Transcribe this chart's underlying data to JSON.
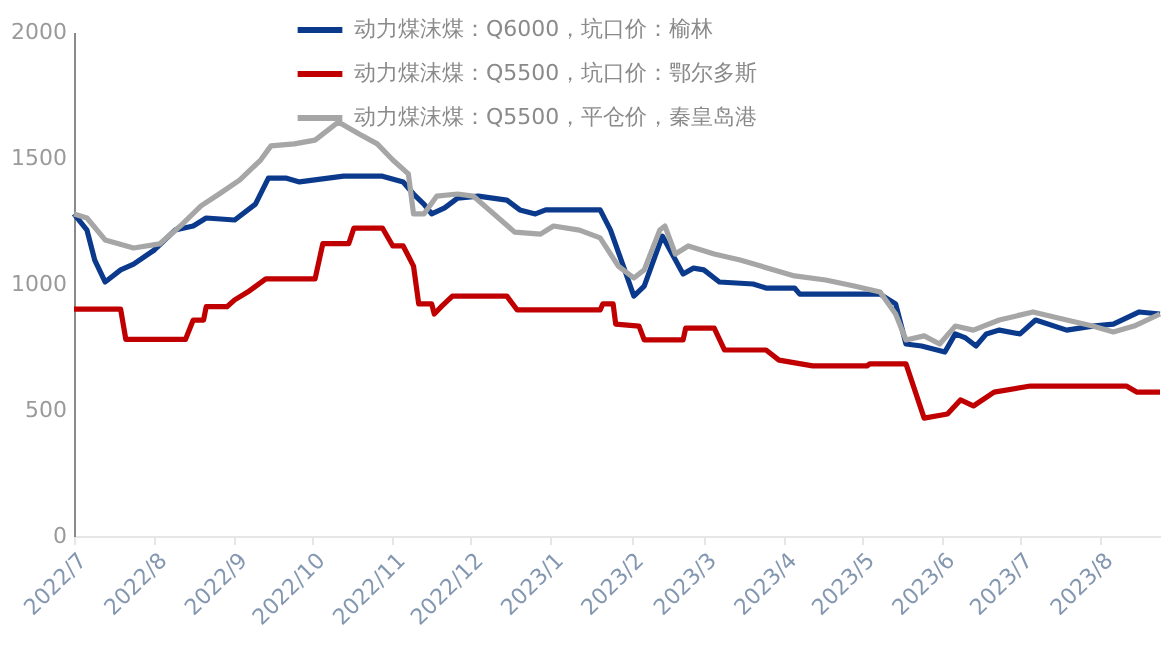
{
  "chart_data": {
    "type": "line",
    "xlim": [
      "2022-07-01",
      "2023-08-24"
    ],
    "xticks": [
      {
        "value": "2022-07-01",
        "label": "2022/7"
      },
      {
        "value": "2022-08-01",
        "label": "2022/8"
      },
      {
        "value": "2022-09-01",
        "label": "2022/9"
      },
      {
        "value": "2022-10-01",
        "label": "2022/10"
      },
      {
        "value": "2022-11-01",
        "label": "2022/11"
      },
      {
        "value": "2022-12-01",
        "label": "2022/12"
      },
      {
        "value": "2023-01-01",
        "label": "2023/1"
      },
      {
        "value": "2023-02-01",
        "label": "2023/2"
      },
      {
        "value": "2023-03-01",
        "label": "2023/3"
      },
      {
        "value": "2023-04-01",
        "label": "2023/4"
      },
      {
        "value": "2023-05-01",
        "label": "2023/5"
      },
      {
        "value": "2023-06-01",
        "label": "2023/6"
      },
      {
        "value": "2023-07-01",
        "label": "2023/7"
      },
      {
        "value": "2023-08-01",
        "label": "2023/8"
      }
    ],
    "ylim": [
      0,
      2000
    ],
    "yticks": [
      0,
      500,
      1000,
      1500,
      2000
    ],
    "legend": "top",
    "series": [
      {
        "name": "动力煤沫煤：Q6000，坑口价：榆林",
        "color": "#0b3a8c",
        "x": [
          "2022-07-01",
          "2022-07-06",
          "2022-07-09",
          "2022-07-13",
          "2022-07-15",
          "2022-07-19",
          "2022-07-24",
          "2022-08-01",
          "2022-08-09",
          "2022-08-16",
          "2022-08-21",
          "2022-09-01",
          "2022-09-09",
          "2022-09-14",
          "2022-09-21",
          "2022-09-26",
          "2022-10-13",
          "2022-10-28",
          "2022-11-05",
          "2022-11-09",
          "2022-11-13",
          "2022-11-16",
          "2022-11-21",
          "2022-11-26",
          "2022-12-04",
          "2022-12-15",
          "2022-12-20",
          "2022-12-26",
          "2022-12-30",
          "2023-01-20",
          "2023-01-24",
          "2023-01-30",
          "2023-02-02",
          "2023-02-06",
          "2023-02-13",
          "2023-02-21",
          "2023-02-25",
          "2023-03-01",
          "2023-03-07",
          "2023-03-20",
          "2023-03-25",
          "2023-04-05",
          "2023-04-07",
          "2023-05-08",
          "2023-05-14",
          "2023-05-18",
          "2023-05-24",
          "2023-06-02",
          "2023-06-06",
          "2023-06-10",
          "2023-06-14",
          "2023-06-18",
          "2023-06-23",
          "2023-07-01",
          "2023-07-07",
          "2023-07-19",
          "2023-07-29",
          "2023-08-06",
          "2023-08-16",
          "2023-08-24"
        ],
        "values": [
          1278,
          1214,
          1095,
          1008,
          1024,
          1056,
          1079,
          1135,
          1214,
          1230,
          1262,
          1254,
          1317,
          1420,
          1420,
          1405,
          1428,
          1428,
          1405,
          1357,
          1317,
          1278,
          1302,
          1341,
          1349,
          1333,
          1294,
          1278,
          1294,
          1294,
          1214,
          1040,
          952,
          992,
          1190,
          1040,
          1063,
          1056,
          1008,
          1000,
          984,
          984,
          960,
          960,
          921,
          762,
          754,
          730,
          802,
          786,
          754,
          802,
          817,
          802,
          857,
          817,
          833,
          841,
          889,
          881
        ]
      },
      {
        "name": "动力煤沫煤：Q5500，坑口价：鄂尔多斯",
        "color": "#c00000",
        "x": [
          "2022-07-01",
          "2022-07-19",
          "2022-07-21",
          "2022-08-13",
          "2022-08-16",
          "2022-08-20",
          "2022-08-21",
          "2022-08-29",
          "2022-09-01",
          "2022-09-06",
          "2022-09-13",
          "2022-10-02",
          "2022-10-05",
          "2022-10-15",
          "2022-10-17",
          "2022-10-28",
          "2022-11-01",
          "2022-11-05",
          "2022-11-09",
          "2022-11-11",
          "2022-11-16",
          "2022-11-17",
          "2022-11-20",
          "2022-11-24",
          "2022-12-15",
          "2022-12-19",
          "2023-01-20",
          "2023-01-21",
          "2023-01-25",
          "2023-01-26",
          "2023-02-04",
          "2023-02-06",
          "2023-02-21",
          "2023-02-22",
          "2023-03-05",
          "2023-03-09",
          "2023-03-25",
          "2023-03-30",
          "2023-04-12",
          "2023-05-03",
          "2023-05-04",
          "2023-05-18",
          "2023-05-25",
          "2023-06-03",
          "2023-06-08",
          "2023-06-13",
          "2023-06-21",
          "2023-07-05",
          "2023-08-11",
          "2023-08-15",
          "2023-08-24"
        ],
        "values": [
          900,
          900,
          780,
          780,
          857,
          857,
          910,
          910,
          937,
          968,
          1020,
          1020,
          1160,
          1160,
          1222,
          1222,
          1151,
          1151,
          1071,
          921,
          921,
          881,
          913,
          952,
          952,
          897,
          897,
          921,
          921,
          841,
          833,
          778,
          778,
          825,
          825,
          738,
          738,
          698,
          675,
          675,
          683,
          683,
          468,
          484,
          540,
          516,
          571,
          595,
          595,
          571,
          571
        ]
      },
      {
        "name": "动力煤沫煤：Q5500，平仓价，秦皇岛港",
        "color": "#a6a6a6",
        "x": [
          "2022-07-01",
          "2022-07-06",
          "2022-07-13",
          "2022-07-24",
          "2022-08-03",
          "2022-08-11",
          "2022-08-19",
          "2022-08-26",
          "2022-09-03",
          "2022-09-11",
          "2022-09-15",
          "2022-09-24",
          "2022-10-02",
          "2022-10-11",
          "2022-10-19",
          "2022-10-26",
          "2022-11-01",
          "2022-11-07",
          "2022-11-09",
          "2022-11-13",
          "2022-11-18",
          "2022-11-26",
          "2022-12-02",
          "2022-12-10",
          "2022-12-18",
          "2022-12-28",
          "2023-01-02",
          "2023-01-12",
          "2023-01-20",
          "2023-01-27",
          "2023-02-02",
          "2023-02-06",
          "2023-02-12",
          "2023-02-14",
          "2023-02-18",
          "2023-02-23",
          "2023-03-05",
          "2023-03-15",
          "2023-03-23",
          "2023-04-05",
          "2023-04-17",
          "2023-04-28",
          "2023-05-08",
          "2023-05-14",
          "2023-05-18",
          "2023-05-25",
          "2023-05-31",
          "2023-06-06",
          "2023-06-13",
          "2023-06-23",
          "2023-07-06",
          "2023-07-19",
          "2023-07-29",
          "2023-08-06",
          "2023-08-14",
          "2023-08-24"
        ],
        "values": [
          1278,
          1262,
          1175,
          1143,
          1159,
          1230,
          1310,
          1357,
          1413,
          1492,
          1548,
          1556,
          1571,
          1643,
          1595,
          1556,
          1492,
          1437,
          1278,
          1278,
          1349,
          1357,
          1349,
          1278,
          1206,
          1198,
          1230,
          1214,
          1183,
          1071,
          1024,
          1056,
          1214,
          1230,
          1119,
          1151,
          1119,
          1095,
          1071,
          1032,
          1016,
          992,
          968,
          881,
          778,
          794,
          762,
          833,
          817,
          857,
          889,
          857,
          833,
          810,
          833,
          881
        ]
      }
    ]
  }
}
